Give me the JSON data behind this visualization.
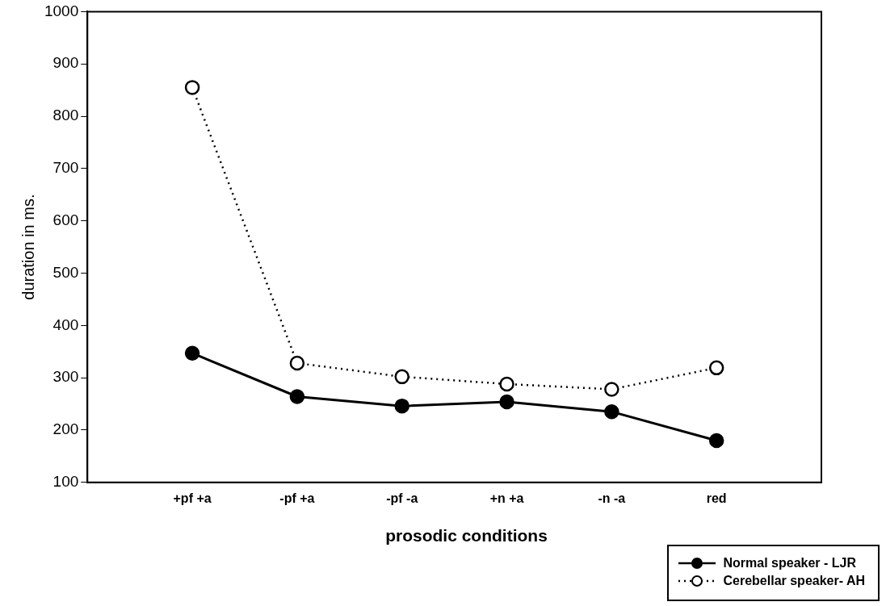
{
  "chart_data": {
    "type": "line",
    "xlabel": "prosodic conditions",
    "ylabel": "duration in ms.",
    "categories": [
      "+pf +a",
      "-pf +a",
      "-pf -a",
      "+n +a",
      "-n -a",
      "red"
    ],
    "series": [
      {
        "name": "Normal speaker - LJR",
        "color": "#000000",
        "line_style": "solid",
        "values": [
          347,
          264,
          246,
          254,
          235,
          180
        ]
      },
      {
        "name": "Cerebellar speaker- AH",
        "color": "#000000",
        "line_style": "dotted",
        "values": [
          855,
          328,
          302,
          288,
          278,
          319
        ]
      }
    ],
    "ylim": [
      100,
      1000
    ],
    "yticks": [
      100,
      200,
      300,
      400,
      500,
      600,
      700,
      800,
      900,
      1000
    ],
    "grid": false,
    "legend": "bottom right",
    "marker": "circle"
  }
}
